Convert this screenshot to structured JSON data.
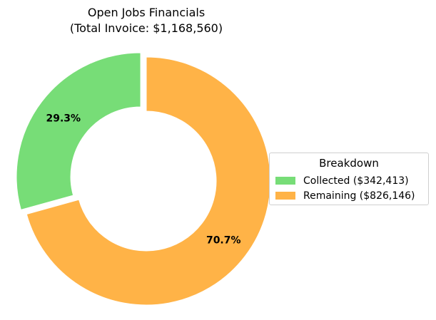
{
  "chart_data": {
    "type": "pie",
    "variant": "donut",
    "title": "Open Jobs Financials",
    "subtitle": "(Total Invoice: $1,168,560)",
    "categories": [
      "Collected",
      "Remaining"
    ],
    "values": [
      342413,
      826146
    ],
    "percent_labels": [
      "29.3%",
      "70.7%"
    ],
    "colors": [
      "#77dd77",
      "#ffb347"
    ],
    "legend": {
      "title": "Breakdown",
      "position": "right",
      "labels": [
        "Collected ($342,413)",
        "Remaining ($826,146)"
      ]
    },
    "start_angle_degrees": 90,
    "direction": "counterclockwise",
    "exploded": [
      "Collected"
    ]
  }
}
